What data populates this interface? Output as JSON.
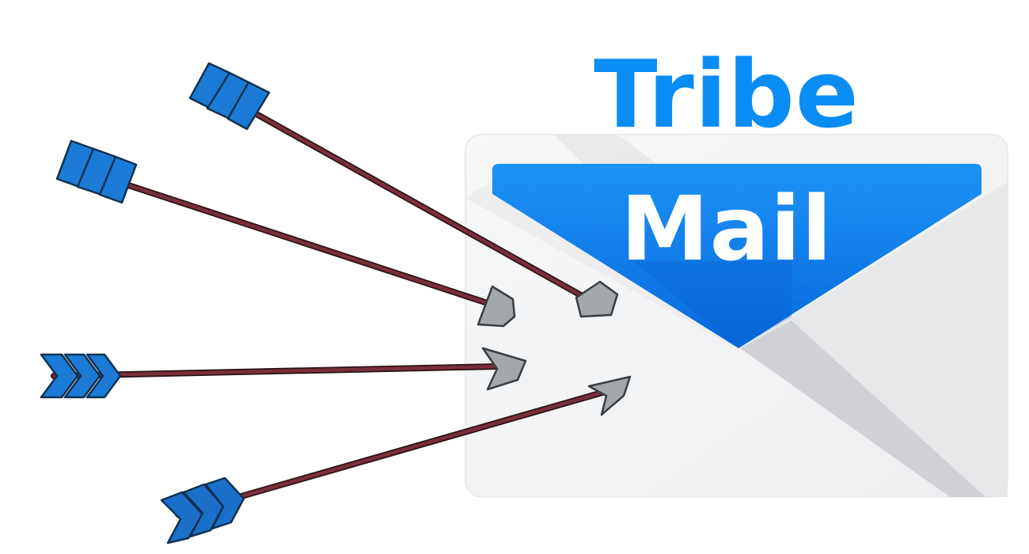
{
  "logo": {
    "word_top": "Tribe",
    "word_bottom": "Mail"
  },
  "colors": {
    "brand_blue": "#0a8cf5",
    "flap_blue_top": "#1d8ff2",
    "flap_blue_bottom": "#0a6fe0",
    "shaft": "#7a2f3a",
    "shaft_outline": "#2a1216",
    "fletching": "#1c7bd6",
    "arrowhead": "#a3a8ad",
    "envelope_body": "#f4f5f6",
    "envelope_shadow": "#cfd1d4"
  },
  "icons": {
    "arrows": "arrow-icon",
    "envelope": "envelope-icon"
  }
}
